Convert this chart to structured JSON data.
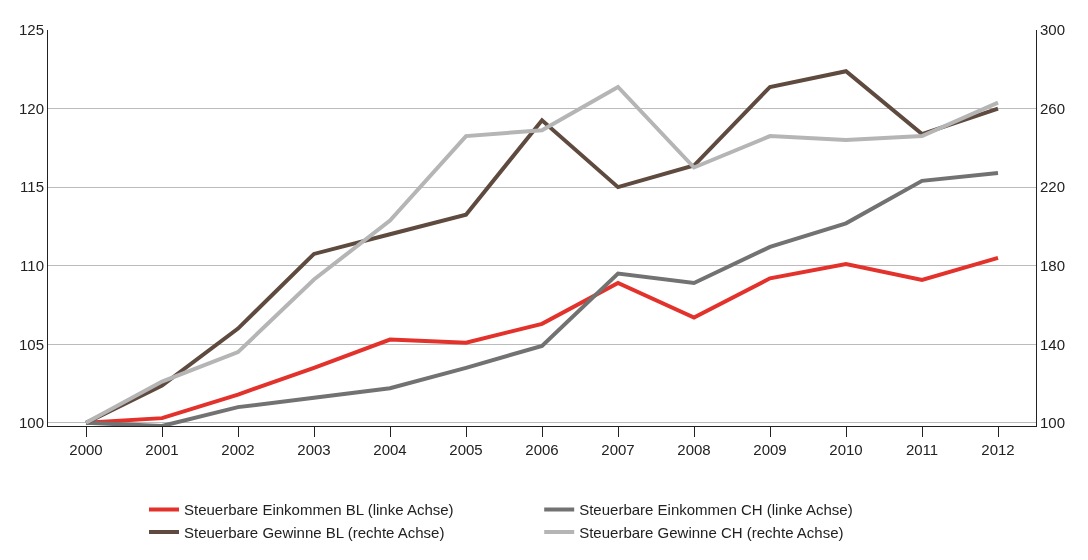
{
  "chart_data": {
    "type": "line",
    "x": [
      2000,
      2001,
      2002,
      2003,
      2004,
      2005,
      2006,
      2007,
      2008,
      2009,
      2010,
      2011,
      2012
    ],
    "xlim": [
      1999.5,
      2012.5
    ],
    "xticks": [
      2000,
      2001,
      2002,
      2003,
      2004,
      2005,
      2006,
      2007,
      2008,
      2009,
      2010,
      2011,
      2012
    ],
    "ylim": [
      99.8,
      125
    ],
    "yticks": [
      100,
      105,
      110,
      115,
      120,
      125
    ],
    "y2lim": [
      98.4,
      300
    ],
    "y2ticks": [
      100,
      140,
      180,
      220,
      260,
      300
    ],
    "grid": "y",
    "legend": "bottom",
    "marker": "none",
    "line_style": "solid",
    "series": [
      {
        "name": "Steuerbare Einkommen BL (linke Achse)",
        "color": "#e3322b",
        "values": [
          100,
          100.3,
          101.8,
          103.5,
          105.3,
          105.1,
          106.3,
          108.9,
          106.7,
          109.2,
          110.1,
          109.1,
          110.5
        ]
      },
      {
        "name": "Steuerbare Einkommen CH (linke Achse)",
        "color": "#727272",
        "values": [
          100,
          99.8,
          101.0,
          101.6,
          102.2,
          103.5,
          104.9,
          109.5,
          108.9,
          111.2,
          112.7,
          115.4,
          115.9
        ]
      },
      {
        "name": "Steuerbare Gewinne BL (rechte Achse)",
        "color": "#5e4a3e",
        "axis": "y2",
        "values": [
          100,
          119,
          148,
          186,
          196,
          206,
          254,
          220,
          231,
          271,
          279,
          247,
          260
        ]
      },
      {
        "name": "Steuerbare Gewinne CH (rechte Achse)",
        "color": "#b5b5b5",
        "axis": "y2",
        "values": [
          100,
          121,
          136,
          173,
          203,
          246,
          249,
          271,
          230,
          246,
          244,
          246,
          263
        ]
      }
    ]
  }
}
